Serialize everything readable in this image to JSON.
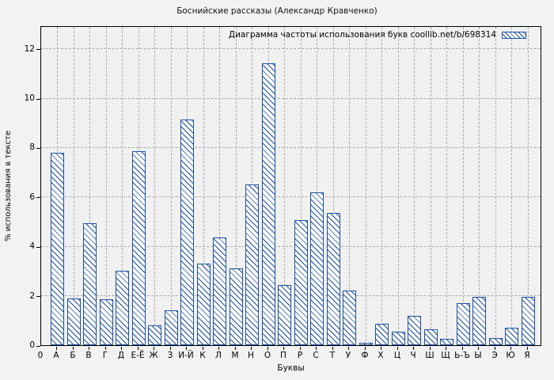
{
  "chart_data": {
    "type": "bar",
    "title": "Боснийские рассказы (Александр Кравченко)",
    "legend": "Диаграмма частоты использования букв coollib.net/b/698314",
    "legend_position": "top-right-inside",
    "xlabel": "Буквы",
    "ylabel": "% использования в тексте",
    "origin_label": "0",
    "categories": [
      "А",
      "Б",
      "В",
      "Г",
      "Д",
      "Е-Ё",
      "Ж",
      "З",
      "И-Й",
      "К",
      "Л",
      "М",
      "Н",
      "О",
      "П",
      "Р",
      "С",
      "Т",
      "У",
      "Ф",
      "Х",
      "Ц",
      "Ч",
      "Ш",
      "Щ",
      "Ь-Ъ",
      "Ы",
      "Э",
      "Ю",
      "Я"
    ],
    "values": [
      7.8,
      1.9,
      4.95,
      1.85,
      3.0,
      7.85,
      0.8,
      1.4,
      9.15,
      3.3,
      4.35,
      3.1,
      6.5,
      11.4,
      2.45,
      5.05,
      6.2,
      5.35,
      2.2,
      0.1,
      0.85,
      0.55,
      1.2,
      0.65,
      0.25,
      1.7,
      1.95,
      0.3,
      0.7,
      1.95
    ],
    "yticks": [
      0,
      2,
      4,
      6,
      8,
      10,
      12
    ],
    "ylim": [
      0,
      12.95
    ],
    "grid": true,
    "colors": {
      "bar_border": "#1c4f9f",
      "bar_fill": "#ffffff",
      "hatch": "#1c4f9f",
      "grid": "#a9a9a9",
      "frame": "#000000",
      "background": "#f2f2f2"
    }
  }
}
